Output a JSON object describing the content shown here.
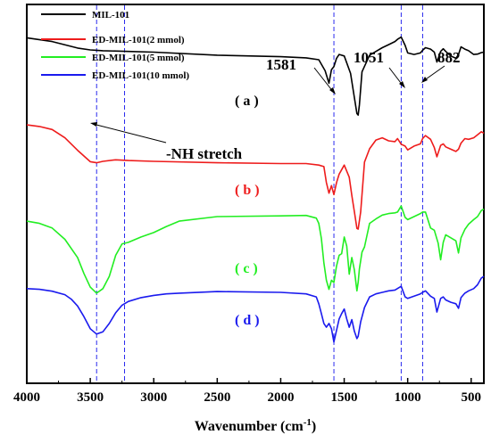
{
  "chart_data": {
    "type": "line",
    "xlabel_main": "Wavenumber (cm",
    "xlabel_sup": "-1",
    "xlabel_close": ")",
    "ylabel": "",
    "x_reversed": true,
    "xlim": [
      4000,
      400
    ],
    "xticks": [
      4000,
      3500,
      3000,
      2500,
      2000,
      1500,
      1000,
      500
    ],
    "ylim": [
      0,
      100
    ],
    "yticks_shown": false,
    "legend_position": "top-left",
    "reference_lines": [
      3450,
      3230,
      1581,
      1051,
      882
    ],
    "annotations": {
      "peak1": "1581",
      "peak2": "1051",
      "peak3": "882",
      "nh": "-NH stretch"
    },
    "series": [
      {
        "name": "MIL-101",
        "tag": "( a )",
        "color": "#000000",
        "x": [
          4000,
          3800,
          3600,
          3500,
          3450,
          3400,
          3200,
          3000,
          2500,
          2000,
          1800,
          1700,
          1650,
          1620,
          1600,
          1581,
          1560,
          1540,
          1500,
          1450,
          1420,
          1400,
          1390,
          1380,
          1360,
          1300,
          1250,
          1200,
          1150,
          1100,
          1080,
          1051,
          1020,
          1000,
          950,
          900,
          882,
          860,
          820,
          790,
          770,
          740,
          720,
          700,
          660,
          620,
          600,
          580,
          550,
          520,
          480,
          450,
          420,
          400
        ],
        "y": [
          91.2,
          90.2,
          88.5,
          88.0,
          87.9,
          87.8,
          87.6,
          87.4,
          86.6,
          86.2,
          85.9,
          85.4,
          82.5,
          79.2,
          82.8,
          83.6,
          85.8,
          86.8,
          86.4,
          81.8,
          75.5,
          71.2,
          70.8,
          73.5,
          82.2,
          86.6,
          87.6,
          88.6,
          89.4,
          90.2,
          90.8,
          91.4,
          89.2,
          87.2,
          86.8,
          87.2,
          87.9,
          88.6,
          88.2,
          87.4,
          84.8,
          87.6,
          88.3,
          87.6,
          86.4,
          85.8,
          86.8,
          88.8,
          88.2,
          87.8,
          86.8,
          86.9,
          87.3,
          87.4
        ]
      },
      {
        "name": "ED-MIL-101(2 mmol)",
        "tag": "( b )",
        "color": "#ee1c1c",
        "x": [
          4000,
          3900,
          3800,
          3700,
          3600,
          3500,
          3450,
          3400,
          3300,
          3200,
          3000,
          2500,
          2000,
          1800,
          1700,
          1660,
          1640,
          1620,
          1600,
          1581,
          1560,
          1540,
          1500,
          1460,
          1440,
          1420,
          1400,
          1390,
          1370,
          1340,
          1300,
          1250,
          1200,
          1150,
          1100,
          1080,
          1051,
          1020,
          1000,
          950,
          900,
          882,
          860,
          820,
          790,
          770,
          740,
          720,
          700,
          660,
          620,
          600,
          580,
          550,
          520,
          480,
          450,
          420,
          400
        ],
        "y": [
          68.2,
          67.8,
          67.0,
          64.8,
          61.5,
          58.5,
          58.2,
          58.6,
          59.0,
          58.8,
          58.6,
          58.2,
          58.0,
          58.0,
          57.6,
          57.2,
          53.0,
          50.2,
          52.2,
          49.8,
          53.0,
          55.2,
          57.6,
          54.4,
          49.6,
          45.4,
          40.9,
          40.7,
          45.2,
          58.4,
          61.9,
          64.2,
          64.8,
          64.0,
          63.8,
          64.6,
          63.1,
          62.6,
          61.6,
          62.6,
          63.2,
          64.6,
          65.4,
          64.4,
          62.2,
          59.8,
          62.8,
          63.2,
          62.4,
          61.8,
          61.2,
          61.8,
          63.4,
          64.6,
          64.4,
          64.8,
          65.6,
          66.4,
          66.0
        ]
      },
      {
        "name": "ED-MIL-101(5 mmol)",
        "tag": "( c )",
        "color": "#22ee22",
        "x": [
          4000,
          3900,
          3800,
          3700,
          3600,
          3550,
          3500,
          3450,
          3400,
          3350,
          3300,
          3250,
          3200,
          3100,
          3000,
          2900,
          2800,
          2500,
          2000,
          1800,
          1720,
          1700,
          1680,
          1660,
          1640,
          1620,
          1600,
          1581,
          1560,
          1540,
          1520,
          1500,
          1480,
          1460,
          1440,
          1420,
          1400,
          1390,
          1380,
          1360,
          1340,
          1300,
          1250,
          1200,
          1150,
          1100,
          1080,
          1051,
          1020,
          1000,
          950,
          900,
          882,
          860,
          820,
          790,
          760,
          740,
          720,
          700,
          660,
          620,
          600,
          580,
          550,
          520,
          480,
          450,
          420,
          400
        ],
        "y": [
          42.8,
          42.2,
          41.0,
          38.0,
          33.2,
          29.0,
          25.4,
          23.8,
          25.0,
          28.2,
          33.8,
          36.8,
          37.2,
          38.6,
          39.8,
          41.4,
          42.8,
          44.0,
          44.2,
          44.3,
          43.6,
          42.2,
          38.2,
          31.8,
          27.2,
          24.8,
          27.2,
          26.6,
          31.0,
          33.8,
          34.2,
          38.6,
          36.2,
          28.8,
          33.2,
          30.0,
          24.4,
          26.6,
          30.2,
          34.6,
          36.0,
          42.2,
          43.4,
          44.4,
          44.8,
          45.0,
          45.2,
          46.8,
          43.8,
          43.2,
          44.0,
          44.8,
          45.2,
          45.2,
          41.0,
          40.4,
          37.0,
          32.6,
          37.2,
          39.2,
          38.4,
          37.6,
          34.4,
          38.4,
          40.6,
          42.0,
          43.2,
          44.0,
          45.6,
          46.0
        ]
      },
      {
        "name": "ED-MIL-101(10 mmol)",
        "tag": "( d )",
        "color": "#1a1aee",
        "x": [
          4000,
          3900,
          3800,
          3700,
          3650,
          3600,
          3550,
          3500,
          3450,
          3400,
          3350,
          3300,
          3250,
          3200,
          3100,
          3000,
          2900,
          2800,
          2500,
          2000,
          1800,
          1720,
          1700,
          1680,
          1660,
          1640,
          1620,
          1600,
          1581,
          1560,
          1540,
          1520,
          1500,
          1480,
          1460,
          1440,
          1420,
          1400,
          1390,
          1370,
          1340,
          1300,
          1250,
          1200,
          1150,
          1100,
          1051,
          1020,
          1000,
          950,
          900,
          882,
          860,
          820,
          790,
          770,
          740,
          720,
          700,
          660,
          620,
          600,
          580,
          550,
          520,
          480,
          450,
          420,
          400
        ],
        "y": [
          25.0,
          24.8,
          24.3,
          23.4,
          22.2,
          20.4,
          17.6,
          14.4,
          13.0,
          13.6,
          15.8,
          18.6,
          20.6,
          21.6,
          22.6,
          23.2,
          23.6,
          23.8,
          24.2,
          24.0,
          23.6,
          22.8,
          21.0,
          18.4,
          15.8,
          14.8,
          15.8,
          14.4,
          10.9,
          14.0,
          17.0,
          18.4,
          19.6,
          17.0,
          14.8,
          16.8,
          13.8,
          11.8,
          12.4,
          16.2,
          20.0,
          22.8,
          23.6,
          24.0,
          24.4,
          24.6,
          25.6,
          22.8,
          22.4,
          23.0,
          23.6,
          24.0,
          24.4,
          23.0,
          22.4,
          18.8,
          22.4,
          22.8,
          22.0,
          21.4,
          21.0,
          19.8,
          22.6,
          23.8,
          24.4,
          25.0,
          26.0,
          27.8,
          28.2
        ]
      }
    ]
  }
}
